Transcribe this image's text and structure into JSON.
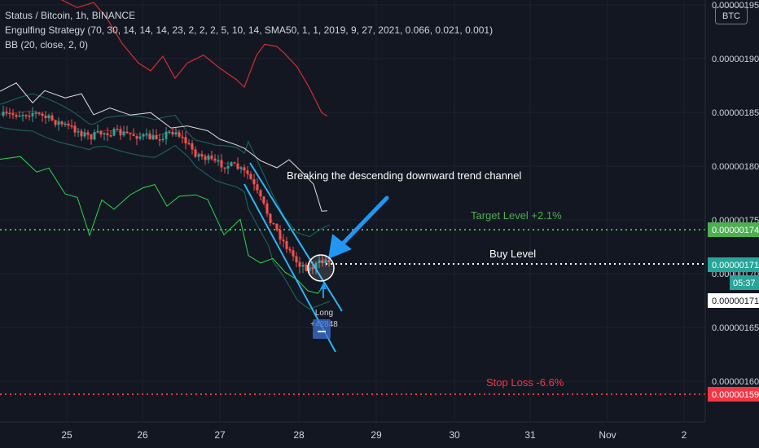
{
  "legend": {
    "line1": "Status / Bitcoin, 1h, BINANCE",
    "line2": "Engulfing Strategy (70, 30, 14, 14, 14, 23, 2, 2, 2, 5, 10, 14, SMA50, 1, 1, 2019, 9, 27, 2021, 0.066, 0.021, 0.001)",
    "line3": "BB (20, close, 2, 0)"
  },
  "currency_badge": "BTC",
  "colors": {
    "background": "#131722",
    "up": "#26a69a",
    "down": "#ef5350",
    "target": "#4caf50",
    "stop": "#f23645",
    "buy": "#ffffff",
    "channel": "#29b6f6",
    "arrow": "#2196f3",
    "bb": "#1b5e57",
    "rsi_red": "#d32f2f",
    "white_line": "#e0e0e0",
    "green_line": "#31d64a"
  },
  "chart_data": {
    "type": "candlestick",
    "symbol": "Status / Bitcoin",
    "interval": "1h",
    "exchange": "BINANCE",
    "x_ticks": [
      "25",
      "26",
      "27",
      "28",
      "29",
      "30",
      "31",
      "Nov",
      "2"
    ],
    "y_ticks": [
      "0.00000195",
      "0.00000190",
      "0.00000185",
      "0.00000180",
      "0.00000175",
      "0.00000170",
      "0.00000165",
      "0.00000160"
    ],
    "ylim": [
      1.585e-06,
      1.955e-06
    ],
    "price_lines": [
      {
        "name": "target",
        "label": "Target Level +2.1%",
        "value": 1.74e-06,
        "price_label": "0.00000174"
      },
      {
        "name": "buy",
        "label": "Buy Level",
        "value": 1.71e-06,
        "price_label": "0.00000171"
      },
      {
        "name": "stop",
        "label": "Stop Loss -6.6%",
        "value": 1.59e-06,
        "price_label": "0.00000159"
      }
    ],
    "last_price": {
      "value": 1.708e-06,
      "label": "0.00000171"
    },
    "countdown": "05:37",
    "annotations": {
      "breakout_text": "Breaking the descending downward trend channel",
      "signal_label": "Long",
      "signal_qty": "+42848"
    }
  }
}
